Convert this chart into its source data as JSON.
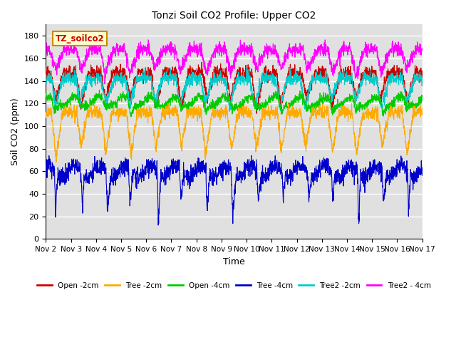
{
  "title": "Tonzi Soil CO2 Profile: Upper CO2",
  "xlabel": "Time",
  "ylabel": "Soil CO2 (ppm)",
  "ylim": [
    0,
    190
  ],
  "yticks": [
    0,
    20,
    40,
    60,
    80,
    100,
    120,
    140,
    160,
    180
  ],
  "legend_labels": [
    "Open -2cm",
    "Tree -2cm",
    "Open -4cm",
    "Tree -4cm",
    "Tree2 -2cm",
    "Tree2 - 4cm"
  ],
  "legend_colors": [
    "#cc0000",
    "#ffaa00",
    "#00cc00",
    "#0000cc",
    "#00cccc",
    "#ff00ff"
  ],
  "watermark_text": "TZ_soilco2",
  "watermark_bg": "#ffffcc",
  "watermark_border": "#cc8800",
  "watermark_text_color": "#cc0000",
  "plot_bg": "#e0e0e0",
  "grid_color": "#ffffff",
  "line_width": 0.8,
  "n_points": 2000,
  "start_day": 2,
  "end_day": 17
}
